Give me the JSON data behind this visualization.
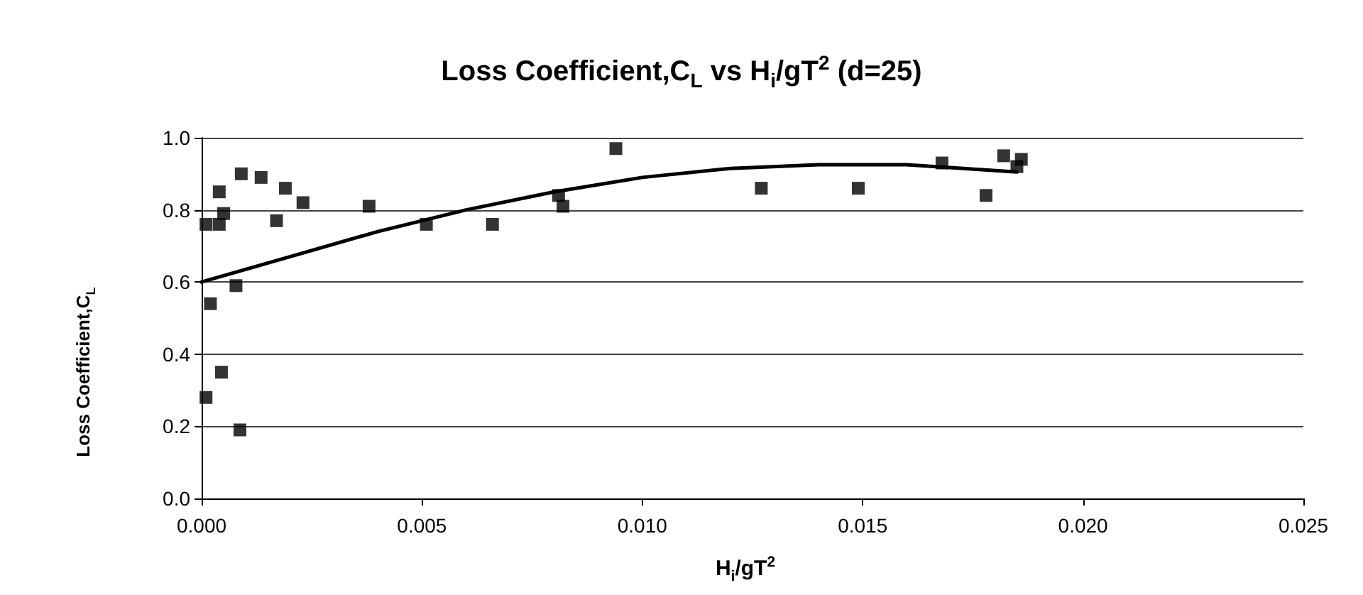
{
  "chart_data": {
    "type": "scatter",
    "title": "Loss Coefficient,C$_{L}$ vs H$_{i}$/gT$^{2}$ (d=25)",
    "xlabel": "H$_{i}$/gT$^{2}$",
    "ylabel": "Loss Coefficient,C$_{L}$",
    "series": [
      {
        "color": "#000000",
        "marker": "square",
        "x": [
          0.0001,
          0.0001,
          0.0002,
          0.0004,
          0.00045,
          0.0004,
          0.0005,
          0.00078,
          0.00087,
          0.0009,
          0.00135,
          0.0017,
          0.0019,
          0.0023,
          0.0038,
          0.0051,
          0.0066,
          0.0081,
          0.0082,
          0.0094,
          0.0127,
          0.0149,
          0.0168,
          0.0178,
          0.0182,
          0.0185,
          0.0186
        ],
        "values": [
          0.28,
          0.76,
          0.54,
          0.76,
          0.35,
          0.85,
          0.79,
          0.59,
          0.19,
          0.9,
          0.89,
          0.77,
          0.86,
          0.82,
          0.81,
          0.76,
          0.76,
          0.84,
          0.81,
          0.97,
          0.86,
          0.86,
          0.93,
          0.84,
          0.95,
          0.92,
          0.94
        ]
      },
      {
        "type": "line",
        "color": "#000000",
        "marker": "none",
        "line_style": "solid",
        "x": [
          0,
          0.002,
          0.004,
          0.006,
          0.008,
          0.01,
          0.012,
          0.014,
          0.016,
          0.0185
        ],
        "values": [
          0.6,
          0.67,
          0.74,
          0.8,
          0.85,
          0.89,
          0.915,
          0.925,
          0.925,
          0.905
        ]
      }
    ],
    "xlim": [
      0,
      0.025
    ],
    "xticks": [
      {
        "value": 0,
        "label": "0.000"
      },
      {
        "value": 0.005,
        "label": "0.005"
      },
      {
        "value": 0.01,
        "label": "0.010"
      },
      {
        "value": 0.015,
        "label": "0.015"
      },
      {
        "value": 0.02,
        "label": "0.020"
      },
      {
        "value": 0.025,
        "label": "0.025"
      }
    ],
    "ylim": [
      0,
      1
    ],
    "yticks": [
      {
        "value": 0,
        "label": "0.0"
      },
      {
        "value": 0.2,
        "label": "0.2"
      },
      {
        "value": 0.4,
        "label": "0.4"
      },
      {
        "value": 0.6,
        "label": "0.6"
      },
      {
        "value": 0.8,
        "label": "0.8"
      },
      {
        "value": 1,
        "label": "1.0"
      }
    ],
    "grid": "y"
  }
}
